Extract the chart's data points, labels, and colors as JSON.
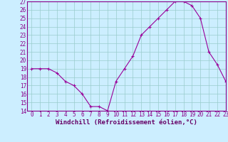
{
  "xlabel": "Windchill (Refroidissement éolien,°C)",
  "x": [
    0,
    1,
    2,
    3,
    4,
    5,
    6,
    7,
    8,
    9,
    10,
    11,
    12,
    13,
    14,
    15,
    16,
    17,
    18,
    19,
    20,
    21,
    22,
    23
  ],
  "y": [
    19,
    19,
    19,
    18.5,
    17.5,
    17,
    16,
    14.5,
    14.5,
    14,
    17.5,
    19,
    20.5,
    23,
    24,
    25,
    26,
    27,
    27,
    26.5,
    25,
    21,
    19.5,
    17.5
  ],
  "line_color": "#990099",
  "marker_color": "#990099",
  "bg_color": "#cceeff",
  "grid_color": "#99cccc",
  "ylim": [
    14,
    27
  ],
  "xlim": [
    -0.5,
    23
  ],
  "yticks": [
    14,
    15,
    16,
    17,
    18,
    19,
    20,
    21,
    22,
    23,
    24,
    25,
    26,
    27
  ],
  "xticks": [
    0,
    1,
    2,
    3,
    4,
    5,
    6,
    7,
    8,
    9,
    10,
    11,
    12,
    13,
    14,
    15,
    16,
    17,
    18,
    19,
    20,
    21,
    22,
    23
  ],
  "tick_label_fontsize": 5.5,
  "xlabel_fontsize": 6.5,
  "marker_size": 2.5,
  "line_width": 0.8
}
